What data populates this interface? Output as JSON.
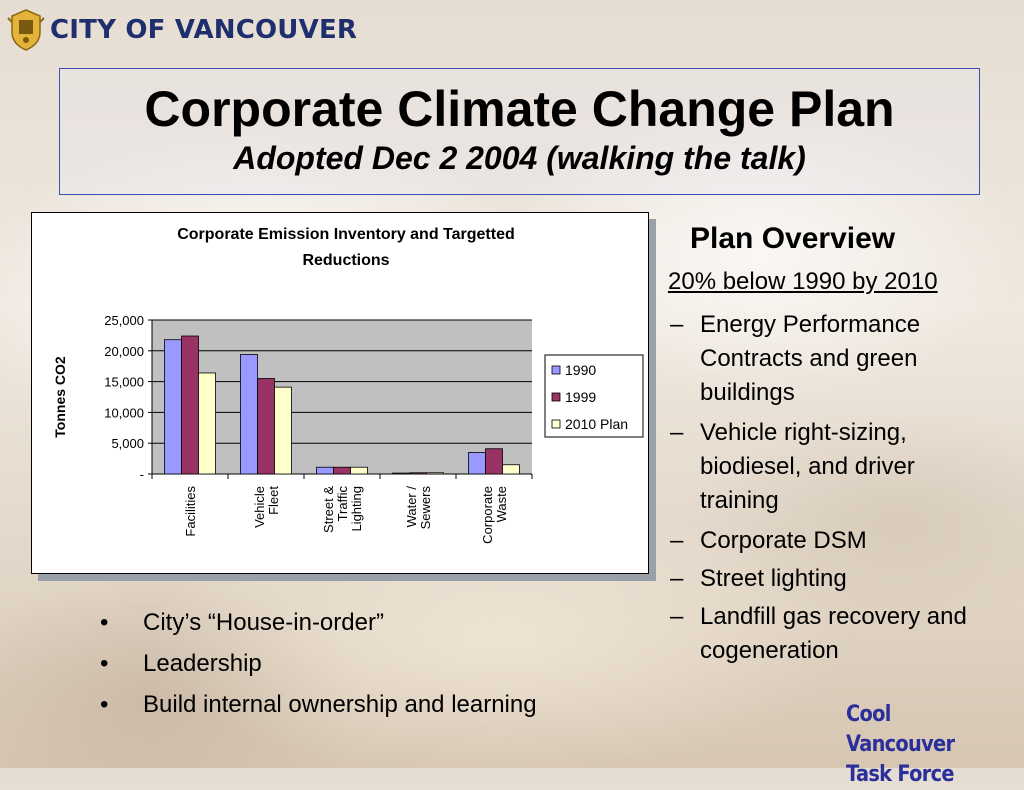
{
  "header": {
    "logo_text": "CITY OF VANCOUVER",
    "logo_icon": "city-crest-icon"
  },
  "slide": {
    "title": "Corporate Climate Change Plan",
    "subtitle": "Adopted Dec 2 2004 (walking the talk)"
  },
  "overview": {
    "heading": "Plan Overview",
    "target": "20% below 1990 by 2010",
    "items": [
      "Energy Performance Contracts and green buildings",
      "Vehicle right-sizing, biodiesel, and driver training",
      "Corporate DSM",
      "Street lighting",
      "Landfill gas recovery and cogeneration"
    ]
  },
  "bullets": [
    "City’s “House-in-order”",
    "Leadership",
    "Build internal ownership and learning"
  ],
  "footer": {
    "line1": "Cool Vancouver",
    "line2": "Task Force"
  },
  "colors": {
    "title_border": "#3b4fb8",
    "brand_text": "#1f2f6e",
    "footer_text": "#2b2f9c",
    "plot_background": "#c0c0c0"
  },
  "chart_data": {
    "type": "bar",
    "title_lines": [
      "Corporate Emission Inventory and Targetted",
      "Reductions"
    ],
    "ylabel": "Tonnes CO2",
    "xlabel": "",
    "ylim": [
      0,
      25000
    ],
    "yticks": [
      0,
      5000,
      10000,
      15000,
      20000,
      25000
    ],
    "ytick_labels": [
      "-",
      "5,000",
      "10,000",
      "15,000",
      "20,000",
      "25,000"
    ],
    "grid": true,
    "legend_position": "right",
    "categories": [
      [
        "Facilities"
      ],
      [
        "Vehicle",
        "Fleet"
      ],
      [
        "Street &",
        "Traffic",
        "Lighting"
      ],
      [
        "Water /",
        "Sewers"
      ],
      [
        "Corporate",
        "Waste"
      ]
    ],
    "series": [
      {
        "name": "1990",
        "color": "#9999ff",
        "values": [
          21800,
          19400,
          1100,
          150,
          3500
        ]
      },
      {
        "name": "1999",
        "color": "#993366",
        "values": [
          22400,
          15500,
          1100,
          200,
          4100
        ]
      },
      {
        "name": "2010 Plan",
        "color": "#ffffcc",
        "values": [
          16400,
          14100,
          1100,
          200,
          1500
        ]
      }
    ]
  }
}
